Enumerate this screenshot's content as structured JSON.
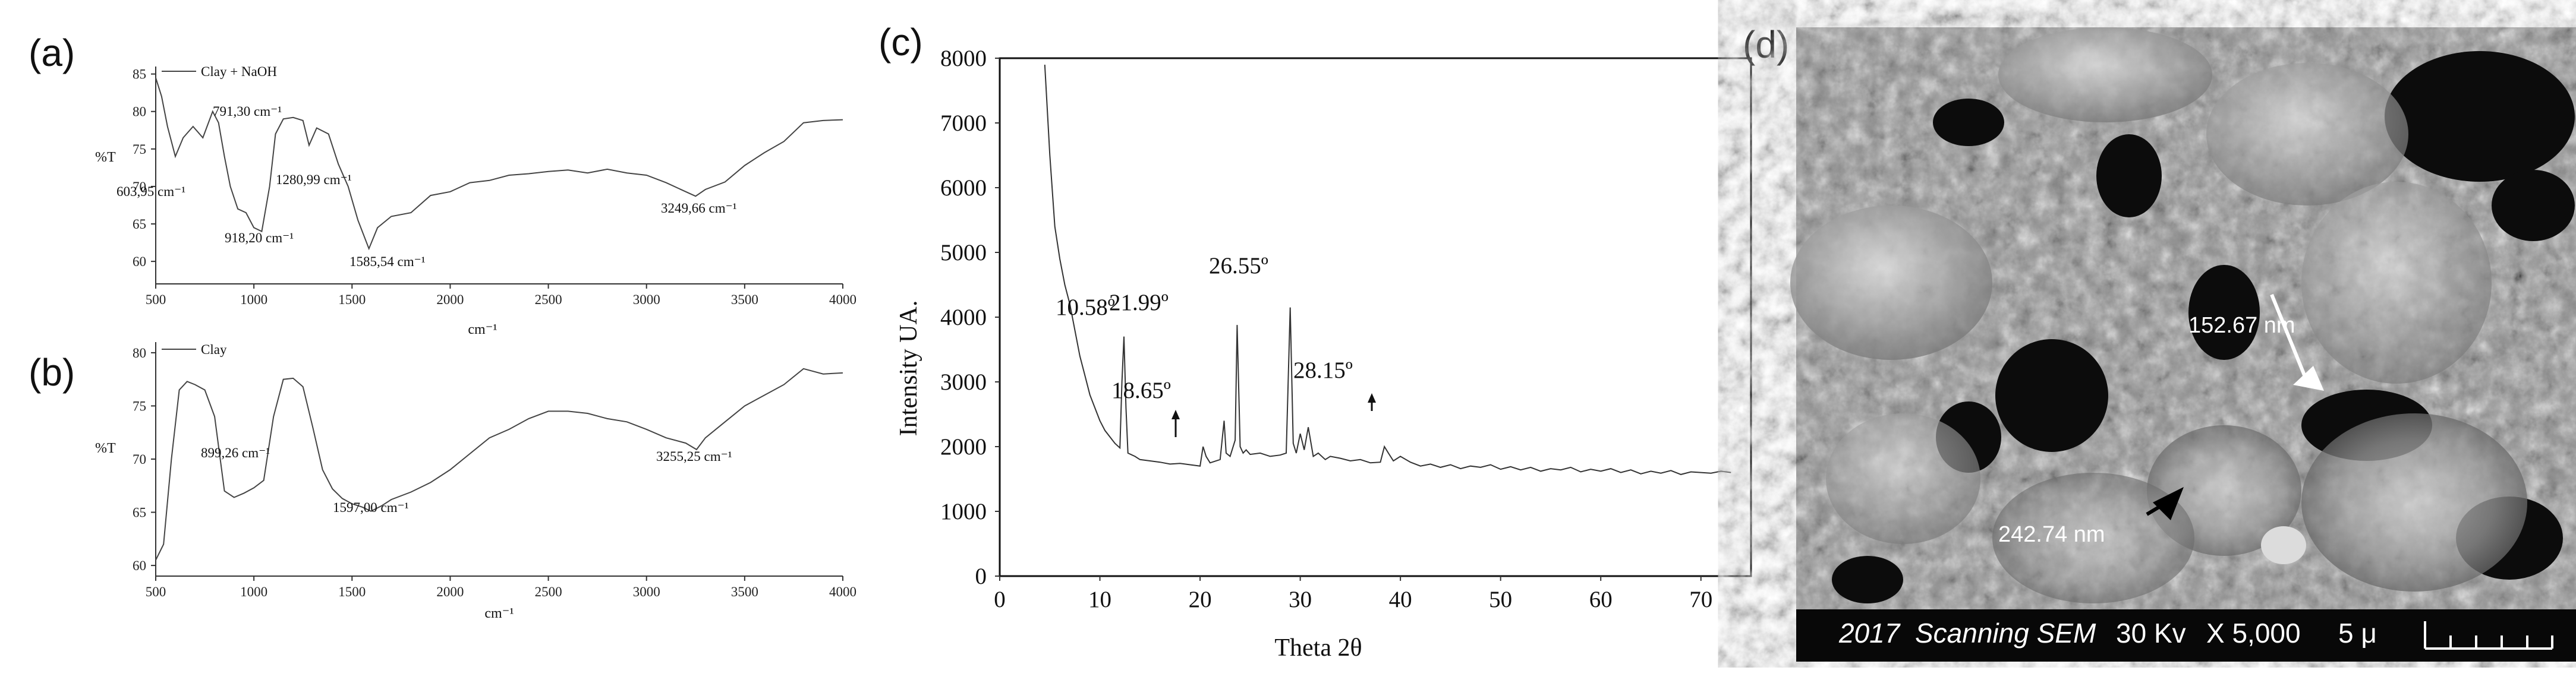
{
  "panels": {
    "a": "(a)",
    "b": "(b)",
    "c": "(c)",
    "d": "(d)"
  },
  "chart_data": [
    {
      "id": "a",
      "type": "line",
      "title": "",
      "legend": "Clay + NaOH",
      "legend_position": "top-left",
      "xlabel": "cm⁻¹",
      "ylabel": "%T",
      "xlim": [
        500,
        4000
      ],
      "ylim": [
        57,
        86
      ],
      "xticks": [
        500,
        1000,
        1500,
        2000,
        2500,
        3000,
        3500,
        4000
      ],
      "yticks": [
        60,
        65,
        70,
        75,
        80,
        85
      ],
      "grid": false,
      "series": [
        {
          "x": [
            500,
            530,
            560,
            600,
            640,
            690,
            740,
            790,
            820,
            850,
            880,
            918,
            960,
            1000,
            1040,
            1080,
            1110,
            1150,
            1200,
            1250,
            1281,
            1320,
            1380,
            1430,
            1480,
            1530,
            1586,
            1630,
            1700,
            1800,
            1900,
            2000,
            2100,
            2200,
            2300,
            2400,
            2500,
            2600,
            2700,
            2800,
            2900,
            3000,
            3100,
            3200,
            3250,
            3300,
            3400,
            3500,
            3600,
            3700,
            3800,
            3900,
            4000
          ],
          "y": [
            84.5,
            82.0,
            78.0,
            74.0,
            76.5,
            78.0,
            76.5,
            80.0,
            78.5,
            74.0,
            70.0,
            67.0,
            66.5,
            64.5,
            64.0,
            70.0,
            77.0,
            79.0,
            79.2,
            78.8,
            75.5,
            77.8,
            77.0,
            73.0,
            70.0,
            65.5,
            61.7,
            64.5,
            66.0,
            66.5,
            68.8,
            69.3,
            70.5,
            70.8,
            71.5,
            71.7,
            72.0,
            72.2,
            71.8,
            72.3,
            71.8,
            71.5,
            70.5,
            69.3,
            68.7,
            69.6,
            70.6,
            72.8,
            74.5,
            76.0,
            78.5,
            78.8,
            78.9
          ]
        }
      ],
      "annotations": [
        "791,30 cm⁻¹",
        "603,95 cm⁻¹",
        "1280,99 cm⁻¹",
        "918,20 cm⁻¹",
        "1585,54 cm⁻¹",
        "3249,66 cm⁻¹"
      ]
    },
    {
      "id": "b",
      "type": "line",
      "title": "",
      "legend": "Clay",
      "legend_position": "top-left",
      "xlabel": "cm⁻¹",
      "ylabel": "%T",
      "xlim": [
        500,
        4000
      ],
      "ylim": [
        59,
        81
      ],
      "xticks": [
        500,
        1000,
        1500,
        2000,
        2500,
        3000,
        3500,
        4000
      ],
      "yticks": [
        60,
        65,
        70,
        75,
        80
      ],
      "grid": false,
      "series": [
        {
          "x": [
            500,
            540,
            580,
            620,
            660,
            700,
            750,
            800,
            850,
            899,
            950,
            1000,
            1050,
            1100,
            1150,
            1200,
            1250,
            1300,
            1350,
            1400,
            1450,
            1500,
            1550,
            1597,
            1650,
            1700,
            1800,
            1900,
            2000,
            2100,
            2200,
            2300,
            2400,
            2500,
            2600,
            2700,
            2800,
            2900,
            3000,
            3100,
            3200,
            3255,
            3300,
            3400,
            3500,
            3600,
            3700,
            3800,
            3900,
            4000
          ],
          "y": [
            60.5,
            62.0,
            70.0,
            76.5,
            77.3,
            77.0,
            76.5,
            74.0,
            67.0,
            66.4,
            66.8,
            67.3,
            68.0,
            74.0,
            77.5,
            77.6,
            76.8,
            73.0,
            69.0,
            67.2,
            66.3,
            65.8,
            65.5,
            65.1,
            65.6,
            66.2,
            66.9,
            67.8,
            69.0,
            70.5,
            72.0,
            72.8,
            73.8,
            74.5,
            74.5,
            74.3,
            73.8,
            73.5,
            72.8,
            72.0,
            71.5,
            70.9,
            72.0,
            73.5,
            75.0,
            76.0,
            77.0,
            78.5,
            78.0,
            78.1
          ]
        }
      ],
      "annotations": [
        "899,26 cm⁻¹",
        "1597,00 cm⁻¹",
        "3255,25 cm⁻¹"
      ]
    },
    {
      "id": "c",
      "type": "line",
      "title": "",
      "xlabel": "Theta 2θ",
      "ylabel": "Intensity UA.",
      "xlim": [
        0,
        75
      ],
      "ylim": [
        0,
        8000
      ],
      "xticks": [
        0,
        10,
        20,
        30,
        40,
        50,
        60,
        70
      ],
      "yticks": [
        0,
        1000,
        2000,
        3000,
        4000,
        5000,
        6000,
        7000,
        8000
      ],
      "grid": false,
      "series": [
        {
          "x": [
            4.5,
            5,
            5.5,
            6,
            6.5,
            7,
            7.5,
            8,
            8.5,
            9,
            9.5,
            10,
            10.5,
            11,
            11.5,
            12,
            12.2,
            12.4,
            12.6,
            12.8,
            13.5,
            14,
            15,
            16,
            17,
            18,
            19,
            20,
            20.3,
            20.6,
            21,
            22,
            22.4,
            22.6,
            23,
            23.5,
            23.7,
            24,
            24.3,
            24.6,
            25,
            26,
            27,
            28,
            28.6,
            29,
            29.3,
            29.6,
            30,
            30.4,
            30.8,
            31.3,
            31.8,
            32.5,
            33,
            34,
            35,
            36,
            37,
            38,
            38.4,
            38.8,
            39.3,
            40,
            41,
            42,
            43,
            44,
            45,
            46,
            47,
            48,
            49,
            50,
            51,
            52,
            53,
            54,
            55,
            56,
            57,
            58,
            59,
            60,
            61,
            62,
            63,
            64,
            65,
            66,
            67,
            68,
            69,
            70,
            71,
            72,
            73
          ],
          "y": [
            7900,
            6500,
            5400,
            4900,
            4500,
            4200,
            3800,
            3400,
            3100,
            2800,
            2600,
            2400,
            2250,
            2150,
            2050,
            1980,
            3000,
            3700,
            2600,
            1900,
            1850,
            1800,
            1780,
            1760,
            1730,
            1740,
            1720,
            1700,
            2000,
            1850,
            1750,
            1800,
            2400,
            1900,
            1850,
            2100,
            3880,
            2000,
            1900,
            1950,
            1880,
            1900,
            1850,
            1870,
            1900,
            4150,
            2050,
            1900,
            2200,
            1950,
            2300,
            1850,
            1900,
            1800,
            1850,
            1820,
            1780,
            1800,
            1750,
            1760,
            2000,
            1900,
            1780,
            1850,
            1760,
            1700,
            1730,
            1680,
            1720,
            1660,
            1700,
            1680,
            1720,
            1650,
            1690,
            1640,
            1680,
            1620,
            1660,
            1640,
            1680,
            1610,
            1650,
            1620,
            1660,
            1600,
            1640,
            1580,
            1620,
            1590,
            1630,
            1570,
            1610,
            1600,
            1590,
            1620,
            1600
          ]
        }
      ],
      "annotations": [
        "10.58º",
        "21.99º",
        "26.55º",
        "18.65º",
        "28.15º"
      ]
    }
  ],
  "sem": {
    "labels": [
      "152.67 nm",
      "242.74 nm"
    ],
    "info_bar": {
      "year": "2017",
      "mode": "Scanning SEM",
      "voltage": "30 Kv",
      "magnification": "X 5,000",
      "scale": "5 μ"
    }
  }
}
